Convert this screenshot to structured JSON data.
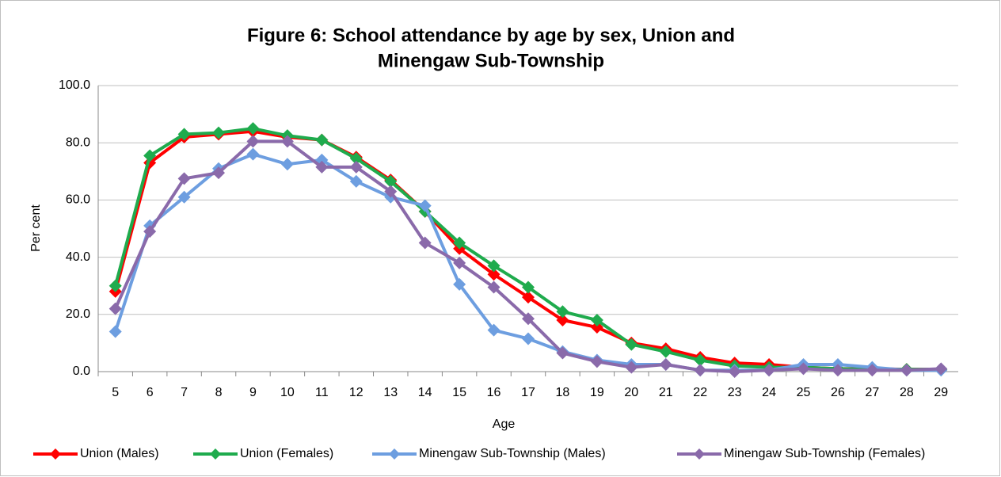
{
  "chart_data": {
    "type": "line",
    "title": [
      "Figure 6:  School attendance by age by sex, Union and",
      "Minengaw Sub-Township"
    ],
    "x_label": "Age",
    "y_label": "Per cent",
    "categories": [
      "5",
      "6",
      "7",
      "8",
      "9",
      "10",
      "11",
      "12",
      "13",
      "14",
      "15",
      "16",
      "17",
      "18",
      "19",
      "20",
      "21",
      "22",
      "23",
      "24",
      "25",
      "26",
      "27",
      "28",
      "29"
    ],
    "ylim": [
      0,
      100
    ],
    "yticks": [
      {
        "value": 0,
        "label": "0.0"
      },
      {
        "value": 20,
        "label": "20.0"
      },
      {
        "value": 40,
        "label": "40.0"
      },
      {
        "value": 60,
        "label": "60.0"
      },
      {
        "value": 80,
        "label": "80.0"
      },
      {
        "value": 100,
        "label": "100.0"
      }
    ],
    "grid": true,
    "legend": "bottom",
    "series": [
      {
        "name": "Union (Males)",
        "color": "#ff0000",
        "values": [
          28,
          73,
          82,
          83,
          84,
          82,
          81,
          75,
          67,
          56,
          43,
          34,
          26,
          18,
          15.5,
          10,
          8,
          5,
          3,
          2.5,
          1.5,
          1,
          1,
          0.8,
          0.8
        ]
      },
      {
        "name": "Union (Females)",
        "color": "#1fab4d",
        "values": [
          30,
          75.5,
          83,
          83.5,
          85,
          82.5,
          81,
          74.5,
          66.5,
          56,
          45,
          37,
          29.5,
          21,
          18,
          9.5,
          7,
          4,
          2,
          1.5,
          1.5,
          1,
          0.8,
          0.8,
          0.8
        ]
      },
      {
        "name": "Minengaw Sub-Township (Males)",
        "color": "#6d9ee0",
        "values": [
          14,
          51,
          61,
          71,
          76,
          72.5,
          74,
          66.5,
          61,
          58,
          30.5,
          14.5,
          11.5,
          7,
          4,
          2.5,
          2.5,
          0.5,
          0.5,
          0.5,
          2.5,
          2.5,
          1.5,
          0.5,
          0.5
        ]
      },
      {
        "name": "Minengaw Sub-Township (Females)",
        "color": "#8a6aaa",
        "values": [
          22,
          49,
          67.5,
          69.5,
          80.5,
          80.5,
          71.5,
          71.5,
          63,
          45,
          38,
          29.5,
          18.5,
          6.5,
          3.5,
          1.5,
          2.5,
          0.5,
          0,
          0.5,
          1,
          0.5,
          0.5,
          0.5,
          1
        ]
      }
    ]
  }
}
